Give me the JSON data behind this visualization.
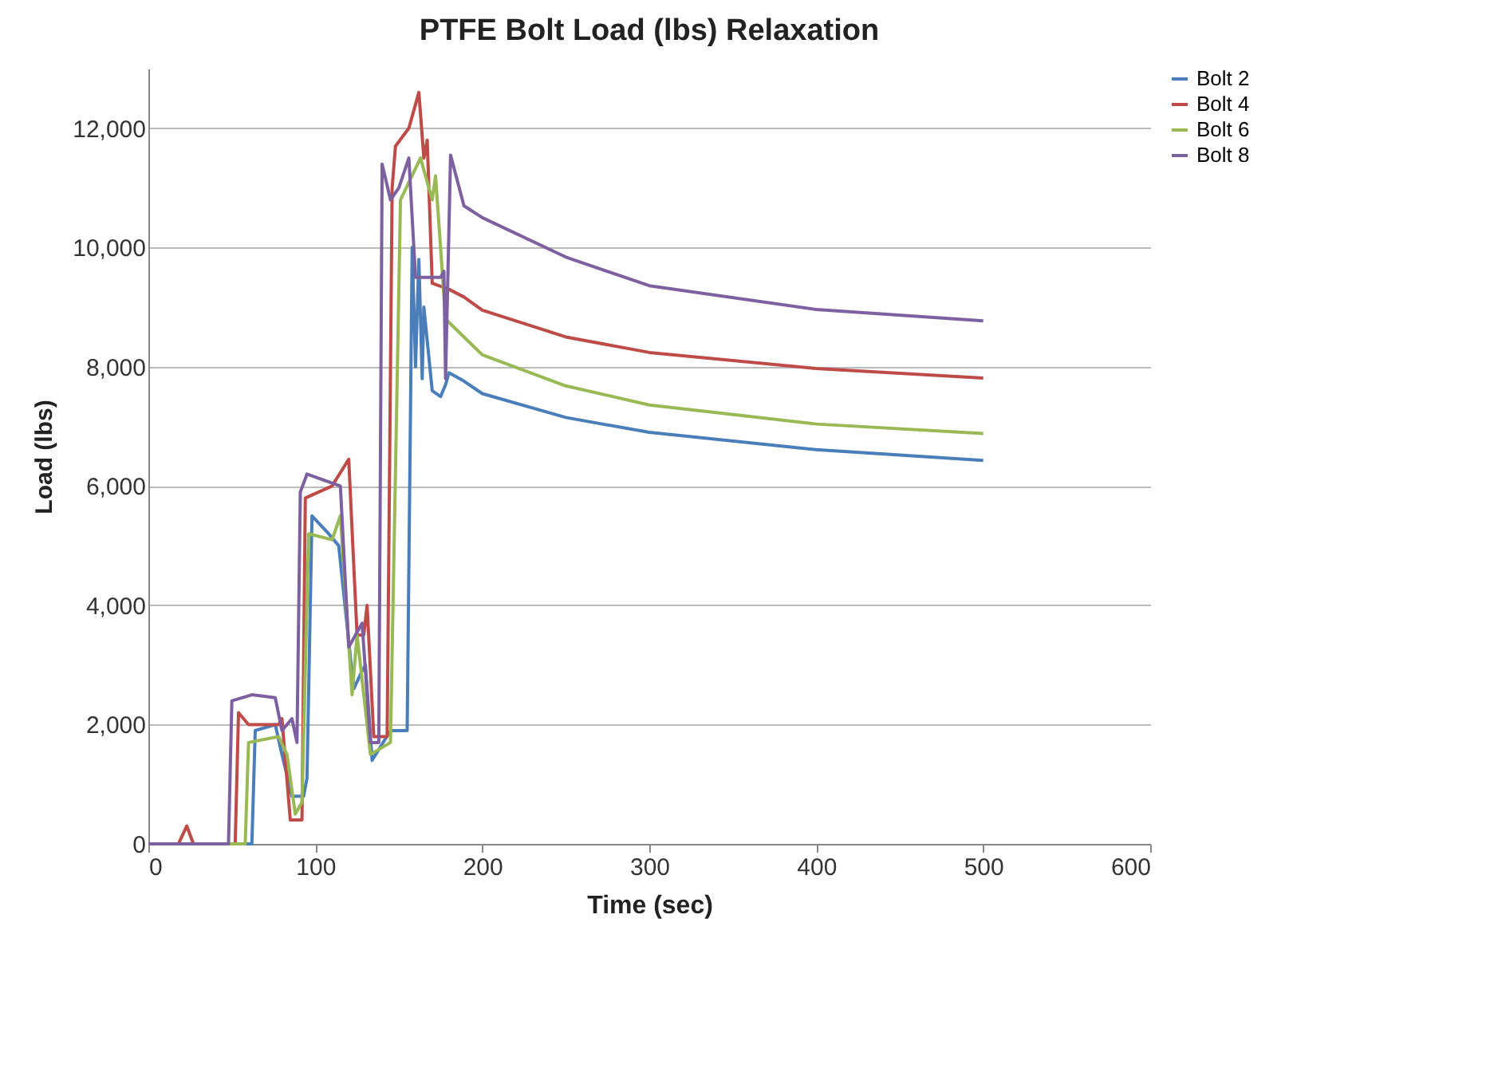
{
  "chart_data": {
    "type": "line",
    "title": "PTFE Bolt Load (lbs) Relaxation",
    "xlabel": "Time (sec)",
    "ylabel": "Load (lbs)",
    "xlim": [
      0,
      600
    ],
    "xticks": [
      0,
      100,
      200,
      300,
      400,
      500,
      600
    ],
    "ylim": [
      0,
      13000
    ],
    "yticks": [
      {
        "value": 0,
        "label": "0"
      },
      {
        "value": 2000,
        "label": "2,000"
      },
      {
        "value": 4000,
        "label": "4,000"
      },
      {
        "value": 6000,
        "label": "6,000"
      },
      {
        "value": 8000,
        "label": "8,000"
      },
      {
        "value": 10000,
        "label": "10,000"
      },
      {
        "value": 12000,
        "label": "12,000"
      }
    ],
    "grid": "y",
    "legend": "right",
    "marker": "none",
    "line_style": "solid",
    "series": [
      {
        "name": "Bolt 2",
        "color": "#4a7ebb",
        "x": [
          0,
          62,
          64,
          76,
          80,
          86,
          93,
          95,
          98,
          108,
          114,
          123,
          128,
          130,
          134,
          145,
          155,
          158,
          160,
          162,
          164,
          165,
          170,
          175,
          178,
          180,
          189,
          200,
          250,
          300,
          400,
          500
        ],
        "values": [
          0,
          0,
          1900,
          2000,
          1500,
          800,
          800,
          1100,
          5500,
          5200,
          5000,
          2600,
          2900,
          3000,
          1400,
          1900,
          1900,
          10000,
          8000,
          9800,
          7800,
          9000,
          7600,
          7500,
          7700,
          7900,
          7760,
          7550,
          7150,
          6900,
          6610,
          6430
        ]
      },
      {
        "name": "Bolt 4",
        "color": "#be4b48",
        "x": [
          0,
          18,
          23,
          27,
          52,
          54,
          60,
          78,
          80,
          85,
          92,
          94,
          110,
          120,
          125,
          129,
          131,
          135,
          143,
          146,
          148,
          156,
          162,
          165,
          167,
          170,
          180,
          189,
          200,
          250,
          300,
          400,
          500
        ],
        "values": [
          0,
          0,
          300,
          0,
          0,
          2200,
          2000,
          2000,
          2100,
          400,
          400,
          5800,
          6000,
          6450,
          3500,
          3500,
          4000,
          1800,
          1800,
          11000,
          11700,
          12000,
          12600,
          11500,
          11800,
          9400,
          9300,
          9170,
          8950,
          8500,
          8240,
          7970,
          7810
        ]
      },
      {
        "name": "Bolt 6",
        "color": "#98b954",
        "x": [
          0,
          58,
          60,
          78,
          83,
          88,
          92,
          96,
          110,
          115,
          122,
          125,
          133,
          145,
          151,
          163,
          170,
          172,
          178,
          189,
          200,
          250,
          300,
          400,
          500
        ],
        "values": [
          0,
          0,
          1700,
          1800,
          1500,
          500,
          700,
          5200,
          5100,
          5500,
          2500,
          3500,
          1500,
          1700,
          10800,
          11500,
          10800,
          11200,
          8800,
          8500,
          8200,
          7680,
          7360,
          7040,
          6880
        ]
      },
      {
        "name": "Bolt 8",
        "color": "#7d60a0",
        "x": [
          0,
          48,
          50,
          62,
          76,
          80,
          86,
          89,
          91,
          95,
          115,
          120,
          128,
          133,
          138,
          140,
          145,
          150,
          156,
          160,
          175,
          177,
          178,
          181,
          189,
          200,
          250,
          300,
          400,
          500
        ],
        "values": [
          0,
          0,
          2400,
          2500,
          2450,
          1900,
          2100,
          1700,
          5900,
          6200,
          6000,
          3300,
          3700,
          1700,
          1700,
          11400,
          10800,
          11000,
          11500,
          9500,
          9500,
          9600,
          7800,
          11550,
          10700,
          10500,
          9840,
          9360,
          8960,
          8770
        ]
      }
    ]
  }
}
